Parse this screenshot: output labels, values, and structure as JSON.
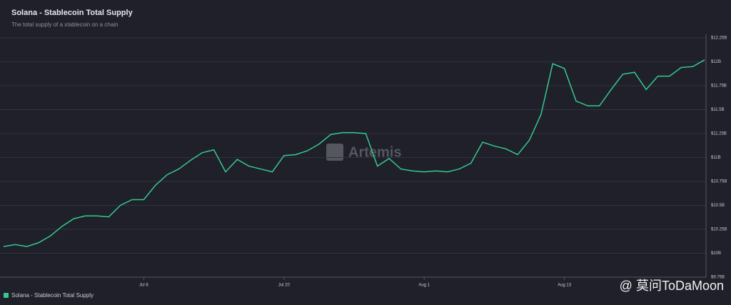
{
  "chart_data": {
    "type": "line",
    "title": "Solana - Stablecoin Total Supply",
    "subtitle": "The total supply of a stablecoin on a chain",
    "watermark": "Artemis",
    "credit": "@ 莫问ToDaMoon",
    "categories": [
      null,
      null,
      null,
      null,
      null,
      null,
      null,
      null,
      null,
      null,
      null,
      null,
      "Jul 8",
      null,
      null,
      null,
      null,
      null,
      null,
      null,
      null,
      null,
      null,
      null,
      "Jul 20",
      null,
      null,
      null,
      null,
      null,
      null,
      null,
      null,
      null,
      null,
      null,
      "Aug 1",
      null,
      null,
      null,
      null,
      null,
      null,
      null,
      null,
      null,
      null,
      null,
      "Aug 13",
      null,
      null,
      null,
      null,
      null,
      null,
      null,
      null,
      null,
      null,
      null,
      null
    ],
    "series": [
      {
        "name": "Solana - Stablecoin Total Supply",
        "color": "#34c98e",
        "values": [
          10.07,
          10.09,
          10.07,
          10.11,
          10.18,
          10.28,
          10.36,
          10.39,
          10.39,
          10.38,
          10.5,
          10.56,
          10.56,
          10.71,
          10.82,
          10.88,
          10.97,
          11.05,
          11.08,
          10.85,
          10.98,
          10.91,
          10.88,
          10.85,
          11.02,
          11.03,
          11.07,
          11.14,
          11.24,
          11.26,
          11.26,
          11.25,
          10.91,
          10.99,
          10.88,
          10.86,
          10.85,
          10.86,
          10.85,
          10.88,
          10.94,
          11.16,
          11.12,
          11.09,
          11.03,
          11.18,
          11.45,
          11.98,
          11.93,
          11.59,
          11.54,
          11.54,
          11.71,
          11.87,
          11.89,
          11.71,
          11.85,
          11.85,
          11.94,
          11.95,
          12.02
        ]
      }
    ],
    "ylim": [
      9.75,
      12.25
    ],
    "yticks": [
      {
        "value": 9.75,
        "label": "$9.75B"
      },
      {
        "value": 10,
        "label": "$10B"
      },
      {
        "value": 10.25,
        "label": "$10.25B"
      },
      {
        "value": 10.5,
        "label": "$10.5B"
      },
      {
        "value": 10.75,
        "label": "$10.75B"
      },
      {
        "value": 11,
        "label": "$11B"
      },
      {
        "value": 11.25,
        "label": "$11.25B"
      },
      {
        "value": 11.5,
        "label": "$11.5B"
      },
      {
        "value": 11.75,
        "label": "$11.75B"
      },
      {
        "value": 12,
        "label": "$12B"
      },
      {
        "value": 12.25,
        "label": "$12.25B"
      }
    ],
    "grid": true
  }
}
